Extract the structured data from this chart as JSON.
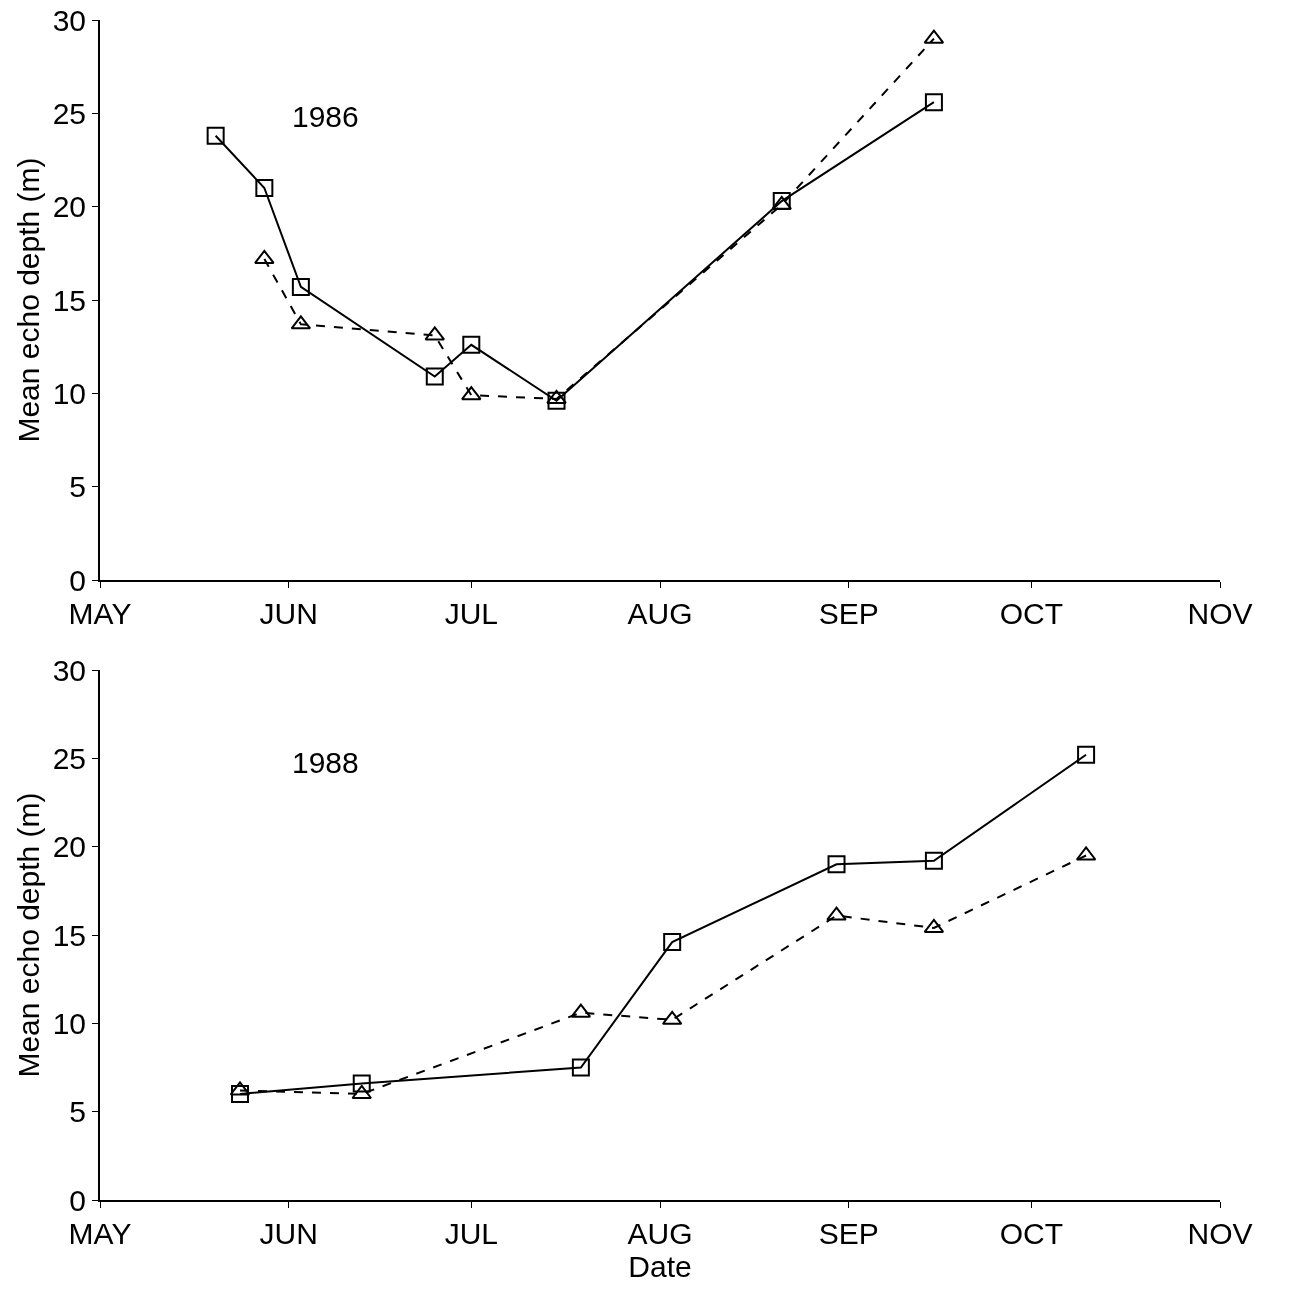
{
  "chart_data": [
    {
      "type": "line",
      "annotations": [
        "1986"
      ],
      "ylabel": "Mean echo depth (m)",
      "xlim": [
        "--05-01",
        "--11-01"
      ],
      "xticks": [
        {
          "value": "--05-01",
          "label": "MAY"
        },
        {
          "value": "--06-01",
          "label": "JUN"
        },
        {
          "value": "--07-01",
          "label": "JUL"
        },
        {
          "value": "--08-01",
          "label": "AUG"
        },
        {
          "value": "--09-01",
          "label": "SEP"
        },
        {
          "value": "--10-01",
          "label": "OCT"
        },
        {
          "value": "--11-01",
          "label": "NOV"
        }
      ],
      "ylim": [
        0,
        30
      ],
      "yticks": [
        0,
        5,
        10,
        15,
        20,
        25,
        30
      ],
      "series": [
        {
          "color": "#000000",
          "marker": "square",
          "line_style": "solid",
          "x": [
            "--05-20",
            "--05-28",
            "--06-03",
            "--06-25",
            "--07-01",
            "--07-15",
            "--08-21",
            "--09-15"
          ],
          "values": [
            23.8,
            21.0,
            15.7,
            10.9,
            12.6,
            9.6,
            20.3,
            25.6
          ]
        },
        {
          "color": "#000000",
          "marker": "triangle",
          "line_style": "dashed",
          "x": [
            "--05-28",
            "--06-03",
            "--06-25",
            "--07-01",
            "--07-15",
            "--08-21",
            "--09-15"
          ],
          "values": [
            17.2,
            13.7,
            13.1,
            9.9,
            9.7,
            20.1,
            29.0
          ]
        }
      ]
    },
    {
      "type": "line",
      "annotations": [
        "1988"
      ],
      "xlabel": "Date",
      "ylabel": "Mean echo depth (m)",
      "xlim": [
        "--05-01",
        "--11-01"
      ],
      "xticks": [
        {
          "value": "--05-01",
          "label": "MAY"
        },
        {
          "value": "--06-01",
          "label": "JUN"
        },
        {
          "value": "--07-01",
          "label": "JUL"
        },
        {
          "value": "--08-01",
          "label": "AUG"
        },
        {
          "value": "--09-01",
          "label": "SEP"
        },
        {
          "value": "--10-01",
          "label": "OCT"
        },
        {
          "value": "--11-01",
          "label": "NOV"
        }
      ],
      "ylim": [
        0,
        30
      ],
      "yticks": [
        0,
        5,
        10,
        15,
        20,
        25,
        30
      ],
      "series": [
        {
          "color": "#000000",
          "marker": "square",
          "line_style": "solid",
          "x": [
            "--05-24",
            "--06-13",
            "--07-19",
            "--08-03",
            "--08-30",
            "--09-15",
            "--10-10"
          ],
          "values": [
            6.0,
            6.6,
            7.5,
            14.6,
            19.0,
            19.2,
            25.2
          ]
        },
        {
          "color": "#000000",
          "marker": "triangle",
          "line_style": "dashed",
          "x": [
            "--05-24",
            "--06-13",
            "--07-19",
            "--08-03",
            "--08-30",
            "--09-15",
            "--10-10"
          ],
          "values": [
            6.2,
            6.0,
            10.6,
            10.2,
            16.1,
            15.4,
            19.5
          ]
        }
      ]
    }
  ]
}
